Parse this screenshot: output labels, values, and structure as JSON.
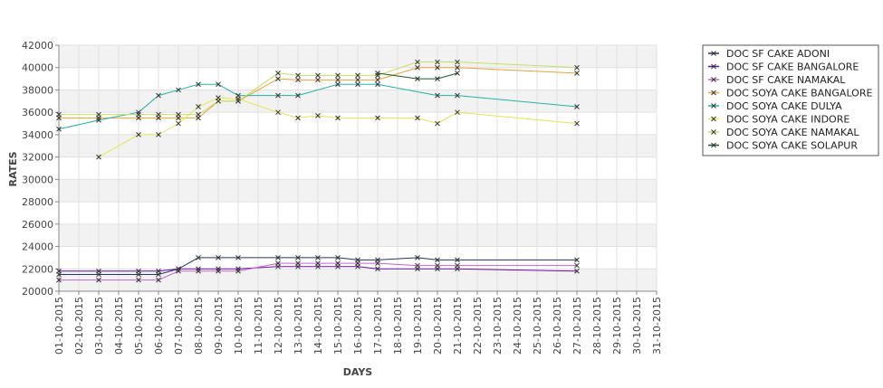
{
  "chart_data": {
    "type": "line",
    "title": "",
    "xlabel": "DAYS",
    "ylabel": "RATES",
    "ylim": [
      20000,
      42000
    ],
    "y_ticks": [
      20000,
      22000,
      24000,
      26000,
      28000,
      30000,
      32000,
      34000,
      36000,
      38000,
      40000,
      42000
    ],
    "x_ticks": [
      "01-10-2015",
      "02-10-2015",
      "03-10-2015",
      "04-10-2015",
      "05-10-2015",
      "06-10-2015",
      "07-10-2015",
      "08-10-2015",
      "09-10-2015",
      "10-10-2015",
      "11-10-2015",
      "12-10-2015",
      "13-10-2015",
      "14-10-2015",
      "15-10-2015",
      "16-10-2015",
      "17-10-2015",
      "18-10-2015",
      "19-10-2015",
      "20-10-2015",
      "21-10-2015",
      "22-10-2015",
      "23-10-2015",
      "24-10-2015",
      "25-10-2015",
      "26-10-2015",
      "27-10-2015",
      "28-10-2015",
      "29-10-2015",
      "30-10-2015",
      "31-10-2015"
    ],
    "grid": true,
    "legend_position": "right",
    "series": [
      {
        "name": "DOC SF CAKE ADONI",
        "color": "#1f3a5f",
        "points": [
          [
            "01-10-2015",
            21500
          ],
          [
            "03-10-2015",
            21500
          ],
          [
            "05-10-2015",
            21500
          ],
          [
            "06-10-2015",
            21500
          ],
          [
            "07-10-2015",
            22000
          ],
          [
            "08-10-2015",
            23000
          ],
          [
            "09-10-2015",
            23000
          ],
          [
            "10-10-2015",
            23000
          ],
          [
            "12-10-2015",
            23000
          ],
          [
            "13-10-2015",
            23000
          ],
          [
            "14-10-2015",
            23000
          ],
          [
            "15-10-2015",
            23000
          ],
          [
            "16-10-2015",
            22800
          ],
          [
            "17-10-2015",
            22800
          ],
          [
            "19-10-2015",
            23000
          ],
          [
            "20-10-2015",
            22800
          ],
          [
            "21-10-2015",
            22800
          ],
          [
            "27-10-2015",
            22800
          ]
        ]
      },
      {
        "name": "DOC SF CAKE BANGALORE",
        "color": "#6a0dad",
        "points": [
          [
            "01-10-2015",
            21800
          ],
          [
            "03-10-2015",
            21800
          ],
          [
            "05-10-2015",
            21800
          ],
          [
            "06-10-2015",
            21800
          ],
          [
            "07-10-2015",
            22000
          ],
          [
            "08-10-2015",
            22000
          ],
          [
            "09-10-2015",
            22000
          ],
          [
            "10-10-2015",
            22000
          ],
          [
            "12-10-2015",
            22200
          ],
          [
            "13-10-2015",
            22200
          ],
          [
            "14-10-2015",
            22200
          ],
          [
            "15-10-2015",
            22200
          ],
          [
            "16-10-2015",
            22200
          ],
          [
            "17-10-2015",
            22000
          ],
          [
            "19-10-2015",
            22000
          ],
          [
            "20-10-2015",
            22000
          ],
          [
            "21-10-2015",
            22000
          ],
          [
            "27-10-2015",
            21800
          ]
        ]
      },
      {
        "name": "DOC SF CAKE NAMAKAL",
        "color": "#c864c8",
        "points": [
          [
            "01-10-2015",
            21000
          ],
          [
            "03-10-2015",
            21000
          ],
          [
            "05-10-2015",
            21000
          ],
          [
            "06-10-2015",
            21000
          ],
          [
            "07-10-2015",
            21800
          ],
          [
            "08-10-2015",
            21800
          ],
          [
            "09-10-2015",
            21800
          ],
          [
            "10-10-2015",
            21800
          ],
          [
            "12-10-2015",
            22500
          ],
          [
            "13-10-2015",
            22500
          ],
          [
            "14-10-2015",
            22500
          ],
          [
            "15-10-2015",
            22500
          ],
          [
            "16-10-2015",
            22500
          ],
          [
            "17-10-2015",
            22500
          ],
          [
            "19-10-2015",
            22300
          ],
          [
            "20-10-2015",
            22300
          ],
          [
            "21-10-2015",
            22300
          ],
          [
            "27-10-2015",
            22300
          ]
        ]
      },
      {
        "name": "DOC SOYA CAKE BANGALORE",
        "color": "#f0a030",
        "points": [
          [
            "01-10-2015",
            35500
          ],
          [
            "03-10-2015",
            35500
          ],
          [
            "05-10-2015",
            35500
          ],
          [
            "06-10-2015",
            35500
          ],
          [
            "07-10-2015",
            35500
          ],
          [
            "08-10-2015",
            35500
          ],
          [
            "09-10-2015",
            37000
          ],
          [
            "10-10-2015",
            37000
          ],
          [
            "12-10-2015",
            39000
          ],
          [
            "13-10-2015",
            38900
          ],
          [
            "14-10-2015",
            38900
          ],
          [
            "15-10-2015",
            38900
          ],
          [
            "16-10-2015",
            38900
          ],
          [
            "17-10-2015",
            38900
          ],
          [
            "19-10-2015",
            40000
          ],
          [
            "20-10-2015",
            40000
          ],
          [
            "21-10-2015",
            40000
          ],
          [
            "27-10-2015",
            39500
          ]
        ]
      },
      {
        "name": "DOC SOYA CAKE DULYA",
        "color": "#20b2aa",
        "points": [
          [
            "01-10-2015",
            34500
          ],
          [
            "03-10-2015",
            35300
          ],
          [
            "05-10-2015",
            36000
          ],
          [
            "06-10-2015",
            37500
          ],
          [
            "07-10-2015",
            38000
          ],
          [
            "08-10-2015",
            38500
          ],
          [
            "09-10-2015",
            38500
          ],
          [
            "10-10-2015",
            37500
          ],
          [
            "12-10-2015",
            37500
          ],
          [
            "13-10-2015",
            37500
          ],
          [
            "15-10-2015",
            38500
          ],
          [
            "16-10-2015",
            38500
          ],
          [
            "17-10-2015",
            38500
          ],
          [
            "20-10-2015",
            37500
          ],
          [
            "21-10-2015",
            37500
          ],
          [
            "27-10-2015",
            36500
          ]
        ]
      },
      {
        "name": "DOC SOYA CAKE INDORE",
        "color": "#e6e64d",
        "points": [
          [
            "03-10-2015",
            32000
          ],
          [
            "05-10-2015",
            34000
          ],
          [
            "06-10-2015",
            34000
          ],
          [
            "07-10-2015",
            35000
          ],
          [
            "08-10-2015",
            36500
          ],
          [
            "09-10-2015",
            37300
          ],
          [
            "10-10-2015",
            37200
          ],
          [
            "12-10-2015",
            36000
          ],
          [
            "13-10-2015",
            35500
          ],
          [
            "14-10-2015",
            35700
          ],
          [
            "15-10-2015",
            35500
          ],
          [
            "17-10-2015",
            35500
          ],
          [
            "19-10-2015",
            35500
          ],
          [
            "20-10-2015",
            35000
          ],
          [
            "21-10-2015",
            36000
          ],
          [
            "27-10-2015",
            35000
          ]
        ]
      },
      {
        "name": "DOC SOYA CAKE NAMAKAL",
        "color": "#c4e060",
        "points": [
          [
            "01-10-2015",
            35800
          ],
          [
            "03-10-2015",
            35800
          ],
          [
            "05-10-2015",
            35800
          ],
          [
            "06-10-2015",
            35800
          ],
          [
            "07-10-2015",
            35800
          ],
          [
            "08-10-2015",
            35800
          ],
          [
            "09-10-2015",
            37000
          ],
          [
            "10-10-2015",
            37000
          ],
          [
            "12-10-2015",
            39500
          ],
          [
            "13-10-2015",
            39300
          ],
          [
            "14-10-2015",
            39300
          ],
          [
            "15-10-2015",
            39300
          ],
          [
            "16-10-2015",
            39300
          ],
          [
            "17-10-2015",
            39300
          ],
          [
            "19-10-2015",
            40500
          ],
          [
            "20-10-2015",
            40500
          ],
          [
            "21-10-2015",
            40500
          ],
          [
            "27-10-2015",
            40000
          ]
        ]
      },
      {
        "name": "DOC SOYA CAKE SOLAPUR",
        "color": "#1a5a2a",
        "points": [
          [
            "17-10-2015",
            39500
          ],
          [
            "19-10-2015",
            39000
          ],
          [
            "20-10-2015",
            39000
          ],
          [
            "21-10-2015",
            39500
          ]
        ]
      }
    ]
  }
}
